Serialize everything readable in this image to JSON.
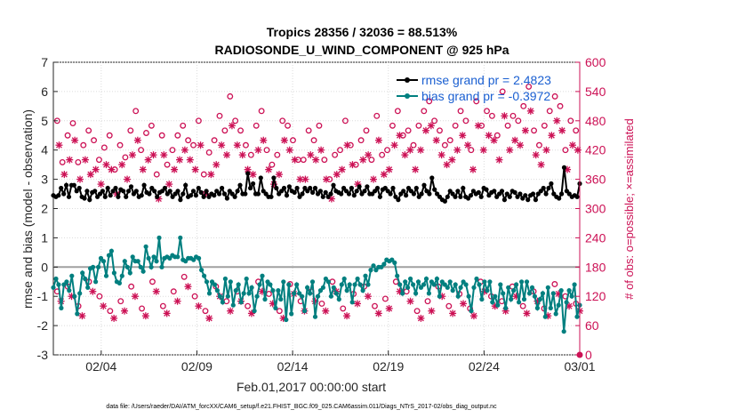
{
  "chart_data": {
    "type": "line",
    "title": "Tropics 28356 / 32036 = 88.513%",
    "subtitle": "RADIOSONDE_U_WIND_COMPONENT @ 925 hPa",
    "xlabel": "Feb.01,2017 00:00:00 start",
    "ylabel": "rmse and bias (model - observation)",
    "ylabel_right": "# of obs: o=possible; ×=assimilated",
    "footer": "data file: /Users/raeder/DAI/ATM_forcXX/CAM6_setup/f.e21.FHIST_BGC.f09_025.CAM6assim.011/Diags_NTrS_2017-02/obs_diag_output.nc",
    "x_tick_labels": [
      "02/04",
      "02/09",
      "02/14",
      "02/19",
      "02/24",
      "03/01"
    ],
    "x_tick_days": [
      3,
      8,
      13,
      18,
      23,
      28
    ],
    "xlim": [
      0.5,
      28.0
    ],
    "y_ticks": [
      -3,
      -2,
      -1,
      0,
      1,
      2,
      3,
      4,
      5,
      6,
      7
    ],
    "ylim": [
      -3,
      7
    ],
    "y_right_ticks": [
      0,
      60,
      120,
      180,
      240,
      300,
      360,
      420,
      480,
      540,
      600
    ],
    "ylim_right": [
      0,
      600
    ],
    "zero_line": 0,
    "colors": {
      "rmse": "#000000",
      "bias": "#007f7f",
      "obs": "#cc1155",
      "zero": "#a0a0a0",
      "legend_text": "#1a5fd1"
    },
    "series": [
      {
        "name": "rmse grand pr = 2.4823",
        "marker": "filled-circle",
        "values": [
          2.45,
          2.4,
          2.45,
          2.7,
          2.5,
          2.8,
          2.4,
          2.8,
          2.8,
          2.6,
          2.7,
          2.4,
          2.35,
          2.6,
          2.3,
          2.55,
          2.6,
          2.4,
          2.5,
          2.6,
          2.4,
          2.7,
          2.45,
          2.6,
          2.7,
          2.4,
          2.65,
          2.6,
          2.4,
          2.6,
          2.75,
          2.5,
          2.6,
          2.4,
          2.45,
          2.8,
          2.55,
          2.5,
          2.7,
          2.6,
          2.4,
          2.55,
          2.6,
          2.7,
          2.5,
          2.6,
          2.4,
          2.5,
          2.6,
          2.3,
          2.5,
          2.8,
          2.4,
          2.45,
          2.6,
          2.45,
          2.7,
          2.55,
          2.4,
          2.6,
          2.4,
          2.5,
          2.45,
          2.6,
          2.5,
          2.7,
          2.5,
          2.35,
          2.6,
          2.5,
          2.4,
          2.6,
          2.8,
          2.5,
          2.5,
          3.2,
          2.7,
          2.85,
          2.5,
          2.5,
          3.05,
          2.6,
          2.5,
          2.4,
          2.4,
          3.05,
          2.7,
          2.5,
          2.6,
          2.7,
          2.45,
          2.75,
          2.6,
          2.55,
          2.7,
          2.4,
          2.5,
          2.7,
          2.6,
          2.7,
          2.55,
          2.7,
          2.5,
          2.6,
          2.4,
          2.55,
          2.4,
          2.5,
          2.8,
          2.6,
          2.55,
          2.5,
          2.7,
          2.6,
          2.5,
          2.7,
          2.45,
          2.6,
          2.75,
          2.5,
          2.6,
          2.75,
          2.5,
          2.5,
          2.6,
          2.7,
          2.4,
          2.65,
          2.7,
          2.6,
          2.5,
          2.7,
          2.4,
          2.3,
          2.5,
          2.6,
          2.45,
          2.7,
          2.6,
          2.5,
          2.7,
          2.4,
          2.5,
          2.8,
          2.6,
          2.5,
          3.05,
          2.65,
          2.5,
          2.4,
          2.3,
          2.25,
          2.4,
          2.6,
          2.5,
          2.4,
          2.6,
          2.4,
          2.7,
          2.4,
          2.35,
          2.45,
          2.6,
          2.5,
          2.55,
          2.4,
          2.7,
          2.65,
          2.45,
          2.55,
          2.6,
          2.4,
          2.5,
          2.6,
          2.3,
          2.5,
          2.4,
          2.6,
          2.55,
          2.4,
          2.5,
          2.35,
          2.45,
          2.3,
          2.45,
          2.5,
          2.3,
          2.5,
          2.6,
          2.7,
          2.5,
          2.7,
          2.85,
          2.5,
          2.4,
          2.35,
          2.5,
          3.4,
          2.6,
          2.5,
          2.4,
          2.45,
          2.4,
          2.85
        ]
      },
      {
        "name": "bias grand pr = -0.3972",
        "marker": "filled-circle",
        "values": [
          -0.7,
          -0.4,
          -0.6,
          -1.4,
          -0.6,
          -0.5,
          -0.8,
          -0.3,
          -1.0,
          -1.6,
          -0.9,
          -0.2,
          -0.4,
          -0.7,
          -0.05,
          0.0,
          -0.5,
          0.0,
          0.3,
          0.2,
          -0.3,
          0.4,
          0.55,
          -0.2,
          -0.5,
          -0.55,
          -0.3,
          0.2,
          0.0,
          -0.2,
          0.35,
          0.2,
          0.2,
          0.0,
          -0.15,
          0.7,
          0.3,
          0.0,
          0.35,
          0.2,
          1.0,
          0.0,
          0.3,
          0.35,
          0.3,
          0.4,
          0.35,
          0.35,
          1.0,
          0.25,
          0.2,
          0.3,
          0.3,
          0.25,
          0.35,
          0.3,
          -0.1,
          -0.3,
          -0.5,
          -0.9,
          -0.5,
          -0.6,
          -0.8,
          -1.0,
          -1.2,
          -0.4,
          -1.0,
          -0.5,
          -1.3,
          -0.8,
          -0.6,
          -1.2,
          -0.9,
          -0.4,
          -0.9,
          -0.7,
          -1.5,
          -1.0,
          -0.6,
          -0.3,
          -1.1,
          -0.5,
          -0.6,
          -0.8,
          -1.4,
          -0.8,
          -1.1,
          -0.5,
          -1.8,
          -0.6,
          -1.6,
          -0.9,
          -0.6,
          -0.9,
          -1.0,
          -1.5,
          -0.7,
          -0.9,
          -0.5,
          -1.7,
          -1.0,
          -0.8,
          -0.7,
          -0.4,
          -0.5,
          -1.0,
          -0.7,
          -0.9,
          -1.1,
          -0.6,
          -0.4,
          -0.8,
          -0.6,
          -1.2,
          -0.6,
          -0.4,
          -0.6,
          -0.8,
          -0.3,
          -0.6,
          -0.1,
          0.05,
          -0.1,
          0.0,
          0.0,
          0.1,
          0.25,
          0.2,
          0.25,
          0.15,
          -0.3,
          -0.6,
          -0.9,
          -0.5,
          -0.7,
          -0.4,
          -0.6,
          -0.9,
          -0.5,
          -0.7,
          -0.6,
          -0.4,
          -0.9,
          -0.5,
          -0.6,
          -0.4,
          -1.0,
          -0.5,
          -0.6,
          -0.7,
          -0.5,
          -0.8,
          -0.6,
          -1.0,
          -0.7,
          -0.5,
          -0.6,
          -1.0,
          -1.5,
          -0.7,
          -0.4,
          -0.6,
          -1.1,
          -0.5,
          -0.8,
          -0.5,
          -1.2,
          -1.0,
          -1.3,
          -0.6,
          -0.9,
          -1.4,
          -0.7,
          -1.1,
          -0.8,
          -0.6,
          -1.2,
          -0.5,
          -1.1,
          -0.5,
          -0.9,
          -0.7,
          -1.0,
          -1.4,
          -1.1,
          -0.9,
          -1.7,
          -0.7,
          -1.4,
          -0.9,
          -1.6,
          -1.3,
          -0.8,
          -2.2,
          -1.2,
          -0.8,
          -1.0,
          -0.6,
          -1.7,
          -1.3
        ]
      }
    ],
    "obs_possible": [
      480,
      395,
      450,
      475,
      395,
      430,
      460,
      440,
      400,
      425,
      450,
      380,
      430,
      405,
      460,
      500,
      420,
      455,
      470,
      370,
      450,
      390,
      420,
      450,
      470,
      440,
      430,
      480,
      370,
      415,
      440,
      490,
      460,
      530,
      480,
      460,
      430,
      410,
      470,
      500,
      420,
      390,
      410,
      480,
      470,
      440,
      400,
      400,
      460,
      440,
      470,
      400,
      360,
      410,
      420,
      480,
      430,
      390,
      440,
      460,
      400,
      490,
      410,
      420,
      470,
      500,
      450,
      460,
      430,
      470,
      500,
      520,
      480,
      460,
      430,
      440,
      470,
      500,
      480,
      420,
      520,
      470,
      500,
      490,
      450,
      540,
      470,
      490,
      480,
      510,
      550,
      460,
      430,
      470,
      500,
      530,
      510,
      420,
      480,
      460
    ],
    "obs_assimilated": [
      430,
      370,
      400,
      440,
      360,
      400,
      370,
      380,
      350,
      390,
      380,
      330,
      390,
      360,
      410,
      440,
      380,
      400,
      410,
      320,
      410,
      350,
      380,
      400,
      420,
      400,
      380,
      430,
      330,
      370,
      390,
      430,
      410,
      470,
      430,
      410,
      380,
      370,
      420,
      440,
      380,
      350,
      370,
      440,
      420,
      400,
      360,
      360,
      410,
      400,
      420,
      360,
      320,
      370,
      380,
      430,
      390,
      350,
      400,
      410,
      360,
      440,
      370,
      380,
      430,
      450,
      410,
      420,
      380,
      420,
      460,
      470,
      440,
      410,
      390,
      400,
      420,
      450,
      430,
      380,
      470,
      420,
      450,
      440,
      400,
      490,
      420,
      440,
      430,
      460,
      500,
      410,
      390,
      420,
      450,
      480,
      460,
      380,
      430,
      420
    ],
    "obs_possible_lower": [
      130,
      140,
      100,
      150,
      120,
      90,
      110,
      140,
      95,
      150,
      100,
      130,
      160,
      120,
      90,
      140,
      110,
      130,
      100,
      150,
      125,
      90,
      145,
      110,
      130,
      105,
      150,
      95,
      125,
      140,
      100,
      115,
      150,
      130,
      90,
      110,
      140,
      100,
      125,
      95,
      150,
      120,
      110,
      140,
      100,
      130,
      95,
      145,
      120,
      105
    ],
    "obs_assimilated_lower": [
      110,
      120,
      80,
      130,
      100,
      75,
      90,
      120,
      80,
      130,
      85,
      110,
      140,
      100,
      75,
      120,
      90,
      110,
      85,
      130,
      105,
      75,
      125,
      90,
      110,
      90,
      130,
      80,
      105,
      120,
      85,
      95,
      130,
      110,
      75,
      90,
      120,
      85,
      105,
      80,
      130,
      100,
      90,
      120,
      85,
      110,
      80,
      125,
      100,
      90
    ]
  }
}
